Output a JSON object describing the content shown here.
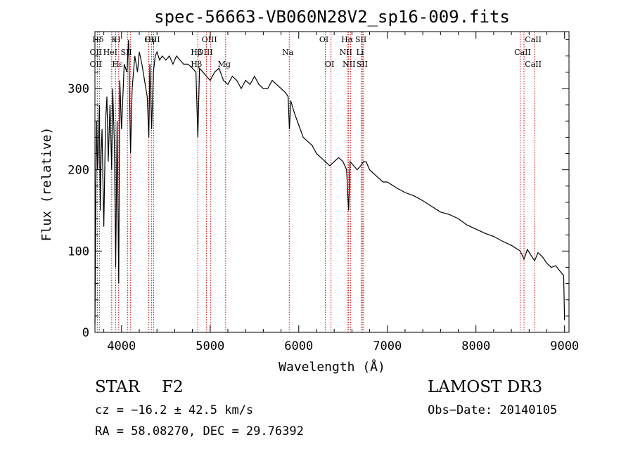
{
  "chart_data": {
    "type": "line",
    "title": "spec-56663-VB060N28V2_sp16-009.fits",
    "xlabel": "Wavelength (Å)",
    "ylabel": "Flux (relative)",
    "xlim": [
      3700,
      9050
    ],
    "ylim": [
      0,
      370
    ],
    "xticks": [
      4000,
      5000,
      6000,
      7000,
      8000,
      9000
    ],
    "yticks": [
      0,
      100,
      200,
      300
    ],
    "grid": false,
    "series": [
      {
        "name": "flux",
        "x": [
          3700,
          3710,
          3720,
          3730,
          3740,
          3750,
          3760,
          3770,
          3780,
          3790,
          3800,
          3820,
          3835,
          3850,
          3870,
          3889,
          3900,
          3920,
          3934,
          3950,
          3968,
          3980,
          4000,
          4030,
          4060,
          4080,
          4102,
          4120,
          4150,
          4180,
          4200,
          4230,
          4260,
          4290,
          4308,
          4320,
          4340,
          4360,
          4380,
          4400,
          4430,
          4460,
          4500,
          4540,
          4580,
          4620,
          4660,
          4700,
          4750,
          4800,
          4840,
          4861,
          4880,
          4920,
          4960,
          5000,
          5050,
          5100,
          5150,
          5200,
          5250,
          5300,
          5350,
          5400,
          5450,
          5500,
          5550,
          5600,
          5650,
          5700,
          5750,
          5800,
          5850,
          5880,
          5895,
          5910,
          5950,
          6000,
          6050,
          6100,
          6150,
          6200,
          6250,
          6300,
          6350,
          6400,
          6450,
          6500,
          6540,
          6563,
          6580,
          6620,
          6660,
          6700,
          6730,
          6760,
          6800,
          6850,
          6900,
          6950,
          7000,
          7100,
          7200,
          7300,
          7400,
          7500,
          7600,
          7700,
          7800,
          7900,
          8000,
          8100,
          8200,
          8300,
          8400,
          8500,
          8542,
          8580,
          8620,
          8662,
          8700,
          8750,
          8800,
          8850,
          8900,
          8950,
          8990,
          9000
        ],
        "values": [
          10,
          180,
          260,
          200,
          230,
          280,
          150,
          220,
          250,
          190,
          130,
          260,
          290,
          210,
          280,
          200,
          300,
          230,
          80,
          260,
          60,
          310,
          250,
          330,
          320,
          360,
          220,
          300,
          340,
          320,
          345,
          330,
          310,
          290,
          240,
          330,
          250,
          320,
          340,
          345,
          335,
          340,
          335,
          340,
          330,
          340,
          335,
          330,
          330,
          325,
          320,
          240,
          325,
          320,
          315,
          310,
          320,
          325,
          310,
          305,
          315,
          310,
          300,
          310,
          305,
          315,
          305,
          300,
          300,
          310,
          305,
          300,
          295,
          290,
          250,
          285,
          270,
          255,
          240,
          235,
          230,
          220,
          215,
          210,
          205,
          210,
          215,
          210,
          200,
          150,
          210,
          205,
          200,
          205,
          210,
          210,
          200,
          195,
          190,
          185,
          185,
          178,
          172,
          168,
          162,
          155,
          148,
          145,
          140,
          132,
          127,
          122,
          118,
          112,
          107,
          100,
          90,
          102,
          95,
          88,
          98,
          93,
          85,
          80,
          82,
          75,
          70,
          15
        ]
      }
    ],
    "lines": [
      {
        "label": "Hδ",
        "x": 3750,
        "row": 1
      },
      {
        "label": "OII",
        "x": 3727,
        "row": 2
      },
      {
        "label": "OII",
        "x": 3727,
        "row": 3
      },
      {
        "label": "K",
        "x": 3934,
        "row": 1
      },
      {
        "label": "H",
        "x": 3968,
        "row": 1
      },
      {
        "label": "HeI",
        "x": 3889,
        "row": 2
      },
      {
        "label": "SII",
        "x": 4070,
        "row": 2
      },
      {
        "label": "Hε",
        "x": 3970,
        "row": 3
      },
      {
        "label": "Hγ",
        "x": 4340,
        "row": 1
      },
      {
        "label": "OIII",
        "x": 4363,
        "row": 1
      },
      {
        "label": "Hβ",
        "x": 4861,
        "row": 2
      },
      {
        "label": "Hβ",
        "x": 4861,
        "row": 3
      },
      {
        "label": "OIII",
        "x": 5007,
        "row": 1
      },
      {
        "label": "OIII",
        "x": 4959,
        "row": 2
      },
      {
        "label": "Mg",
        "x": 5175,
        "row": 3
      },
      {
        "label": "Na",
        "x": 5893,
        "row": 2
      },
      {
        "label": "OI",
        "x": 6300,
        "row": 1
      },
      {
        "label": "OI",
        "x": 6364,
        "row": 3
      },
      {
        "label": "Hα",
        "x": 6563,
        "row": 1
      },
      {
        "label": "NII",
        "x": 6548,
        "row": 2
      },
      {
        "label": "NII",
        "x": 6584,
        "row": 3
      },
      {
        "label": "SII",
        "x": 6717,
        "row": 1
      },
      {
        "label": "Li",
        "x": 6708,
        "row": 2
      },
      {
        "label": "SII",
        "x": 6731,
        "row": 3
      },
      {
        "label": "CaII",
        "x": 8662,
        "row": 1
      },
      {
        "label": "CaII",
        "x": 8542,
        "row": 2
      },
      {
        "label": "CaII",
        "x": 8662,
        "row": 3
      }
    ],
    "line_marks": [
      3727,
      3750,
      3889,
      3934,
      3968,
      4070,
      4102,
      4308,
      4340,
      4363,
      4861,
      4959,
      5007,
      5175,
      5893,
      6300,
      6364,
      6548,
      6563,
      6584,
      6708,
      6717,
      6731,
      8498,
      8542,
      8662
    ]
  },
  "info": {
    "class": "STAR",
    "subclass": "F2",
    "survey": "LAMOST DR3",
    "cz": "cz = −16.2 ± 42.5 km/s",
    "obs_date": "Obs−Date: 20140105",
    "coords": "RA =  58.08270, DEC =  29.76392"
  },
  "colors": {
    "line_marker": "#cc0000",
    "trace": "#000000"
  }
}
